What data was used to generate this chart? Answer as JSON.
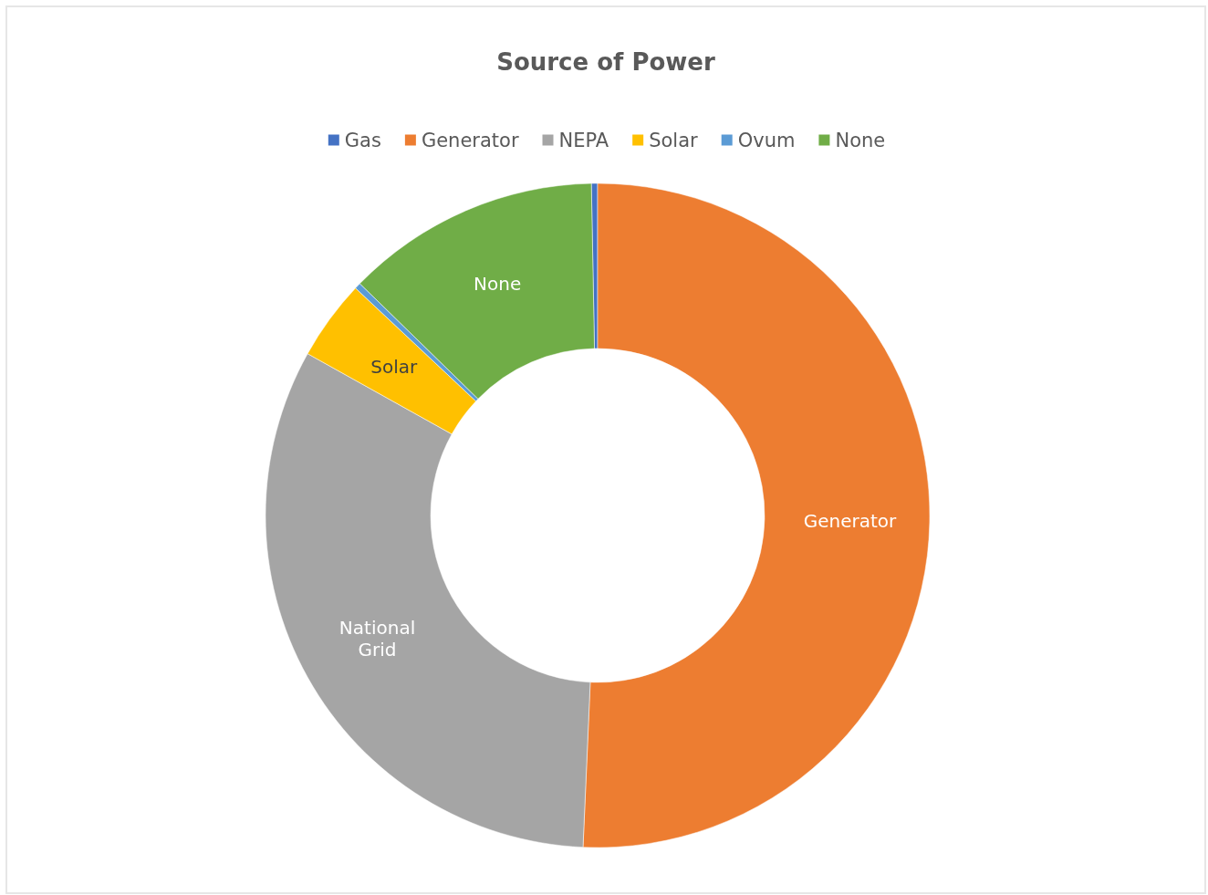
{
  "chart_data": {
    "type": "donut",
    "title": "Source of Power",
    "categories": [
      "Gas",
      "Generator",
      "NEPA",
      "Solar",
      "Ovum",
      "None"
    ],
    "values": [
      0.3,
      50.7,
      32.4,
      3.9,
      0.3,
      12.4
    ],
    "colors": [
      "#4472c4",
      "#ed7d31",
      "#a5a5a5",
      "#ffc000",
      "#5b9bd5",
      "#70ad47"
    ],
    "value_labels": [
      null,
      "Generator",
      "National Grid",
      "Solar",
      null,
      "None"
    ],
    "legend": "top"
  }
}
